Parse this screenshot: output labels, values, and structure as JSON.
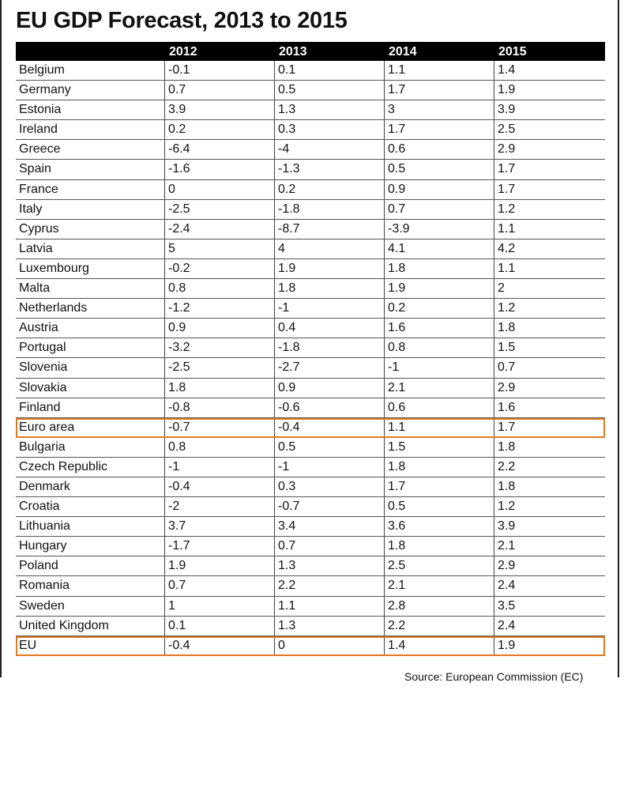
{
  "title": "EU GDP Forecast, 2013 to 2015",
  "source": "Source: European Commission (EC)",
  "highlight_color": "#e07a20",
  "chart_data": {
    "type": "table",
    "title": "EU GDP Forecast, 2013 to 2015",
    "columns": [
      "",
      "2012",
      "2013",
      "2014",
      "2015"
    ],
    "rows": [
      {
        "country": "Belgium",
        "values": [
          "-0.1",
          "0.1",
          "1.1",
          "1.4"
        ]
      },
      {
        "country": "Germany",
        "values": [
          "0.7",
          "0.5",
          "1.7",
          "1.9"
        ]
      },
      {
        "country": "Estonia",
        "values": [
          "3.9",
          "1.3",
          "3",
          "3.9"
        ]
      },
      {
        "country": "Ireland",
        "values": [
          "0.2",
          "0.3",
          "1.7",
          "2.5"
        ]
      },
      {
        "country": "Greece",
        "values": [
          "-6.4",
          "-4",
          "0.6",
          "2.9"
        ]
      },
      {
        "country": "Spain",
        "values": [
          "-1.6",
          "-1.3",
          "0.5",
          "1.7"
        ]
      },
      {
        "country": "France",
        "values": [
          "0",
          "0.2",
          "0.9",
          "1.7"
        ]
      },
      {
        "country": "Italy",
        "values": [
          "-2.5",
          "-1.8",
          "0.7",
          "1.2"
        ]
      },
      {
        "country": "Cyprus",
        "values": [
          "-2.4",
          "-8.7",
          "-3.9",
          "1.1"
        ]
      },
      {
        "country": "Latvia",
        "values": [
          "5",
          "4",
          "4.1",
          "4.2"
        ]
      },
      {
        "country": "Luxembourg",
        "values": [
          "-0.2",
          "1.9",
          "1.8",
          "1.1"
        ]
      },
      {
        "country": "Malta",
        "values": [
          "0.8",
          "1.8",
          "1.9",
          "2"
        ]
      },
      {
        "country": "Netherlands",
        "values": [
          "-1.2",
          "-1",
          "0.2",
          "1.2"
        ]
      },
      {
        "country": "Austria",
        "values": [
          "0.9",
          "0.4",
          "1.6",
          "1.8"
        ]
      },
      {
        "country": "Portugal",
        "values": [
          "-3.2",
          "-1.8",
          "0.8",
          "1.5"
        ]
      },
      {
        "country": "Slovenia",
        "values": [
          "-2.5",
          "-2.7",
          "-1",
          "0.7"
        ]
      },
      {
        "country": "Slovakia",
        "values": [
          "1.8",
          "0.9",
          "2.1",
          "2.9"
        ]
      },
      {
        "country": "Finland",
        "values": [
          "-0.8",
          "-0.6",
          "0.6",
          "1.6"
        ]
      },
      {
        "country": "Euro area",
        "values": [
          "-0.7",
          "-0.4",
          "1.1",
          "1.7"
        ],
        "highlight": true
      },
      {
        "country": "Bulgaria",
        "values": [
          "0.8",
          "0.5",
          "1.5",
          "1.8"
        ]
      },
      {
        "country": "Czech Republic",
        "values": [
          "-1",
          "-1",
          "1.8",
          "2.2"
        ]
      },
      {
        "country": "Denmark",
        "values": [
          "-0.4",
          "0.3",
          "1.7",
          "1.8"
        ]
      },
      {
        "country": "Croatia",
        "values": [
          "-2",
          "-0.7",
          "0.5",
          "1.2"
        ]
      },
      {
        "country": "Lithuania",
        "values": [
          "3.7",
          "3.4",
          "3.6",
          "3.9"
        ]
      },
      {
        "country": "Hungary",
        "values": [
          "-1.7",
          "0.7",
          "1.8",
          "2.1"
        ]
      },
      {
        "country": "Poland",
        "values": [
          "1.9",
          "1.3",
          "2.5",
          "2.9"
        ]
      },
      {
        "country": "Romania",
        "values": [
          "0.7",
          "2.2",
          "2.1",
          "2.4"
        ]
      },
      {
        "country": "Sweden",
        "values": [
          "1",
          "1.1",
          "2.8",
          "3.5"
        ]
      },
      {
        "country": "United Kingdom",
        "values": [
          "0.1",
          "1.3",
          "2.2",
          "2.4"
        ]
      },
      {
        "country": "EU",
        "values": [
          "-0.4",
          "0",
          "1.4",
          "1.9"
        ],
        "highlight": true
      }
    ]
  }
}
